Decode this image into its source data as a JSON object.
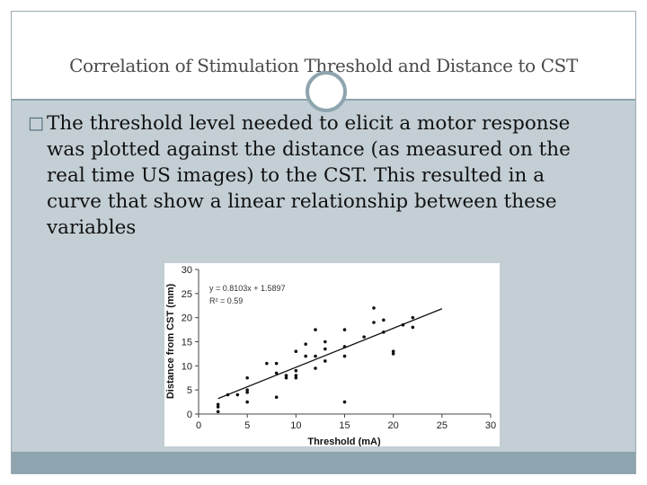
{
  "slide": {
    "title": "Correlation of Stimulation Threshold and Distance to CST",
    "bullet_lines": [
      "The threshold level needed to elicit a motor response",
      "was plotted against the distance (as measured on the",
      "real time US images) to the CST. This resulted in a",
      "curve that show a linear relationship between these",
      "variables"
    ],
    "bullet_icon": "square-bullet-icon"
  },
  "colors": {
    "content_bg": "#c3cfd5",
    "accent": "#8ea4ae",
    "title_text": "#4a4a4a"
  },
  "chart_data": {
    "type": "scatter",
    "title": "",
    "xlabel": "Threshold (mA)",
    "ylabel": "Distance from CST (mm)",
    "xlim": [
      0,
      30
    ],
    "ylim": [
      0,
      30
    ],
    "xticks": [
      "0",
      "5",
      "10",
      "15",
      "20",
      "25",
      "30"
    ],
    "yticks": [
      "0",
      "5",
      "10",
      "15",
      "20",
      "25",
      "30"
    ],
    "grid": false,
    "equation": "y = 0.8103x + 1.5897",
    "r_squared": "R² = 0.59",
    "trendline": {
      "slope": 0.8103,
      "intercept": 1.5897,
      "x_range": [
        2,
        25
      ]
    },
    "points": [
      [
        2,
        0.5
      ],
      [
        2,
        1.5
      ],
      [
        2,
        2
      ],
      [
        3,
        4
      ],
      [
        4,
        4
      ],
      [
        5,
        4.5
      ],
      [
        5,
        5
      ],
      [
        5,
        7.5
      ],
      [
        5,
        2.5
      ],
      [
        7,
        10.5
      ],
      [
        8,
        10.5
      ],
      [
        8,
        3.5
      ],
      [
        8,
        8.5
      ],
      [
        9,
        7.5
      ],
      [
        9,
        8
      ],
      [
        10,
        7.5
      ],
      [
        10,
        8
      ],
      [
        10,
        13
      ],
      [
        10,
        9
      ],
      [
        11,
        12
      ],
      [
        11,
        14.5
      ],
      [
        12,
        12
      ],
      [
        12,
        17.5
      ],
      [
        12,
        9.5
      ],
      [
        13,
        11
      ],
      [
        13,
        13.5
      ],
      [
        13,
        15
      ],
      [
        15,
        17.5
      ],
      [
        15,
        14
      ],
      [
        15,
        12
      ],
      [
        15,
        2.5
      ],
      [
        17,
        16
      ],
      [
        18,
        19
      ],
      [
        18,
        22
      ],
      [
        19,
        17
      ],
      [
        19,
        19.5
      ],
      [
        20,
        12.5
      ],
      [
        20,
        13
      ],
      [
        21,
        18.5
      ],
      [
        22,
        18
      ],
      [
        22,
        20
      ]
    ]
  }
}
